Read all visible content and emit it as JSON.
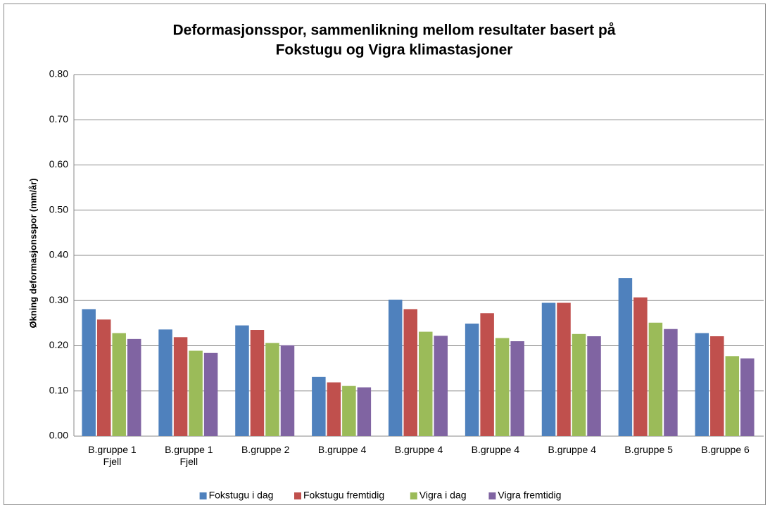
{
  "chart_data": {
    "type": "bar",
    "title": "Deformasjonsspor, sammenlikning mellom resultater basert på",
    "subtitle": "Fokstugu og Vigra klimastasjoner",
    "y_label": "Økning deformasjonsspor (mm/år)",
    "categories": [
      "B.gruppe 1\nFjell",
      "B.gruppe 1\nFjell",
      "B.gruppe 2",
      "B.gruppe 4",
      "B.gruppe 4",
      "B.gruppe 4",
      "B.gruppe 4",
      "B.gruppe 5",
      "B.gruppe 6"
    ],
    "series": [
      {
        "name": "Fokstugu i dag",
        "color": "#4f81bd",
        "values": [
          0.281,
          0.236,
          0.245,
          0.131,
          0.302,
          0.249,
          0.295,
          0.35,
          0.228
        ]
      },
      {
        "name": "Fokstugu fremtidig",
        "color": "#c0504d",
        "values": [
          0.258,
          0.219,
          0.235,
          0.119,
          0.281,
          0.272,
          0.295,
          0.307,
          0.221
        ]
      },
      {
        "name": "Vigra i dag",
        "color": "#9bbb59",
        "values": [
          0.228,
          0.189,
          0.206,
          0.111,
          0.231,
          0.217,
          0.226,
          0.251,
          0.177
        ]
      },
      {
        "name": "Vigra fremtidig",
        "color": "#8064a2",
        "values": [
          0.215,
          0.184,
          0.201,
          0.108,
          0.222,
          0.21,
          0.221,
          0.237,
          0.172
        ]
      }
    ],
    "ylim": [
      0,
      0.8
    ],
    "yticks": [
      {
        "value": 0,
        "label": "0.00"
      },
      {
        "value": 0.1,
        "label": "0.10"
      },
      {
        "value": 0.2,
        "label": "0.20"
      },
      {
        "value": 0.3,
        "label": "0.30"
      },
      {
        "value": 0.4,
        "label": "0.40"
      },
      {
        "value": 0.5,
        "label": "0.50"
      },
      {
        "value": 0.6,
        "label": "0.60"
      },
      {
        "value": 0.7,
        "label": "0.70"
      },
      {
        "value": 0.8,
        "label": "0.80"
      }
    ],
    "grid": true,
    "legend": "bottom"
  }
}
